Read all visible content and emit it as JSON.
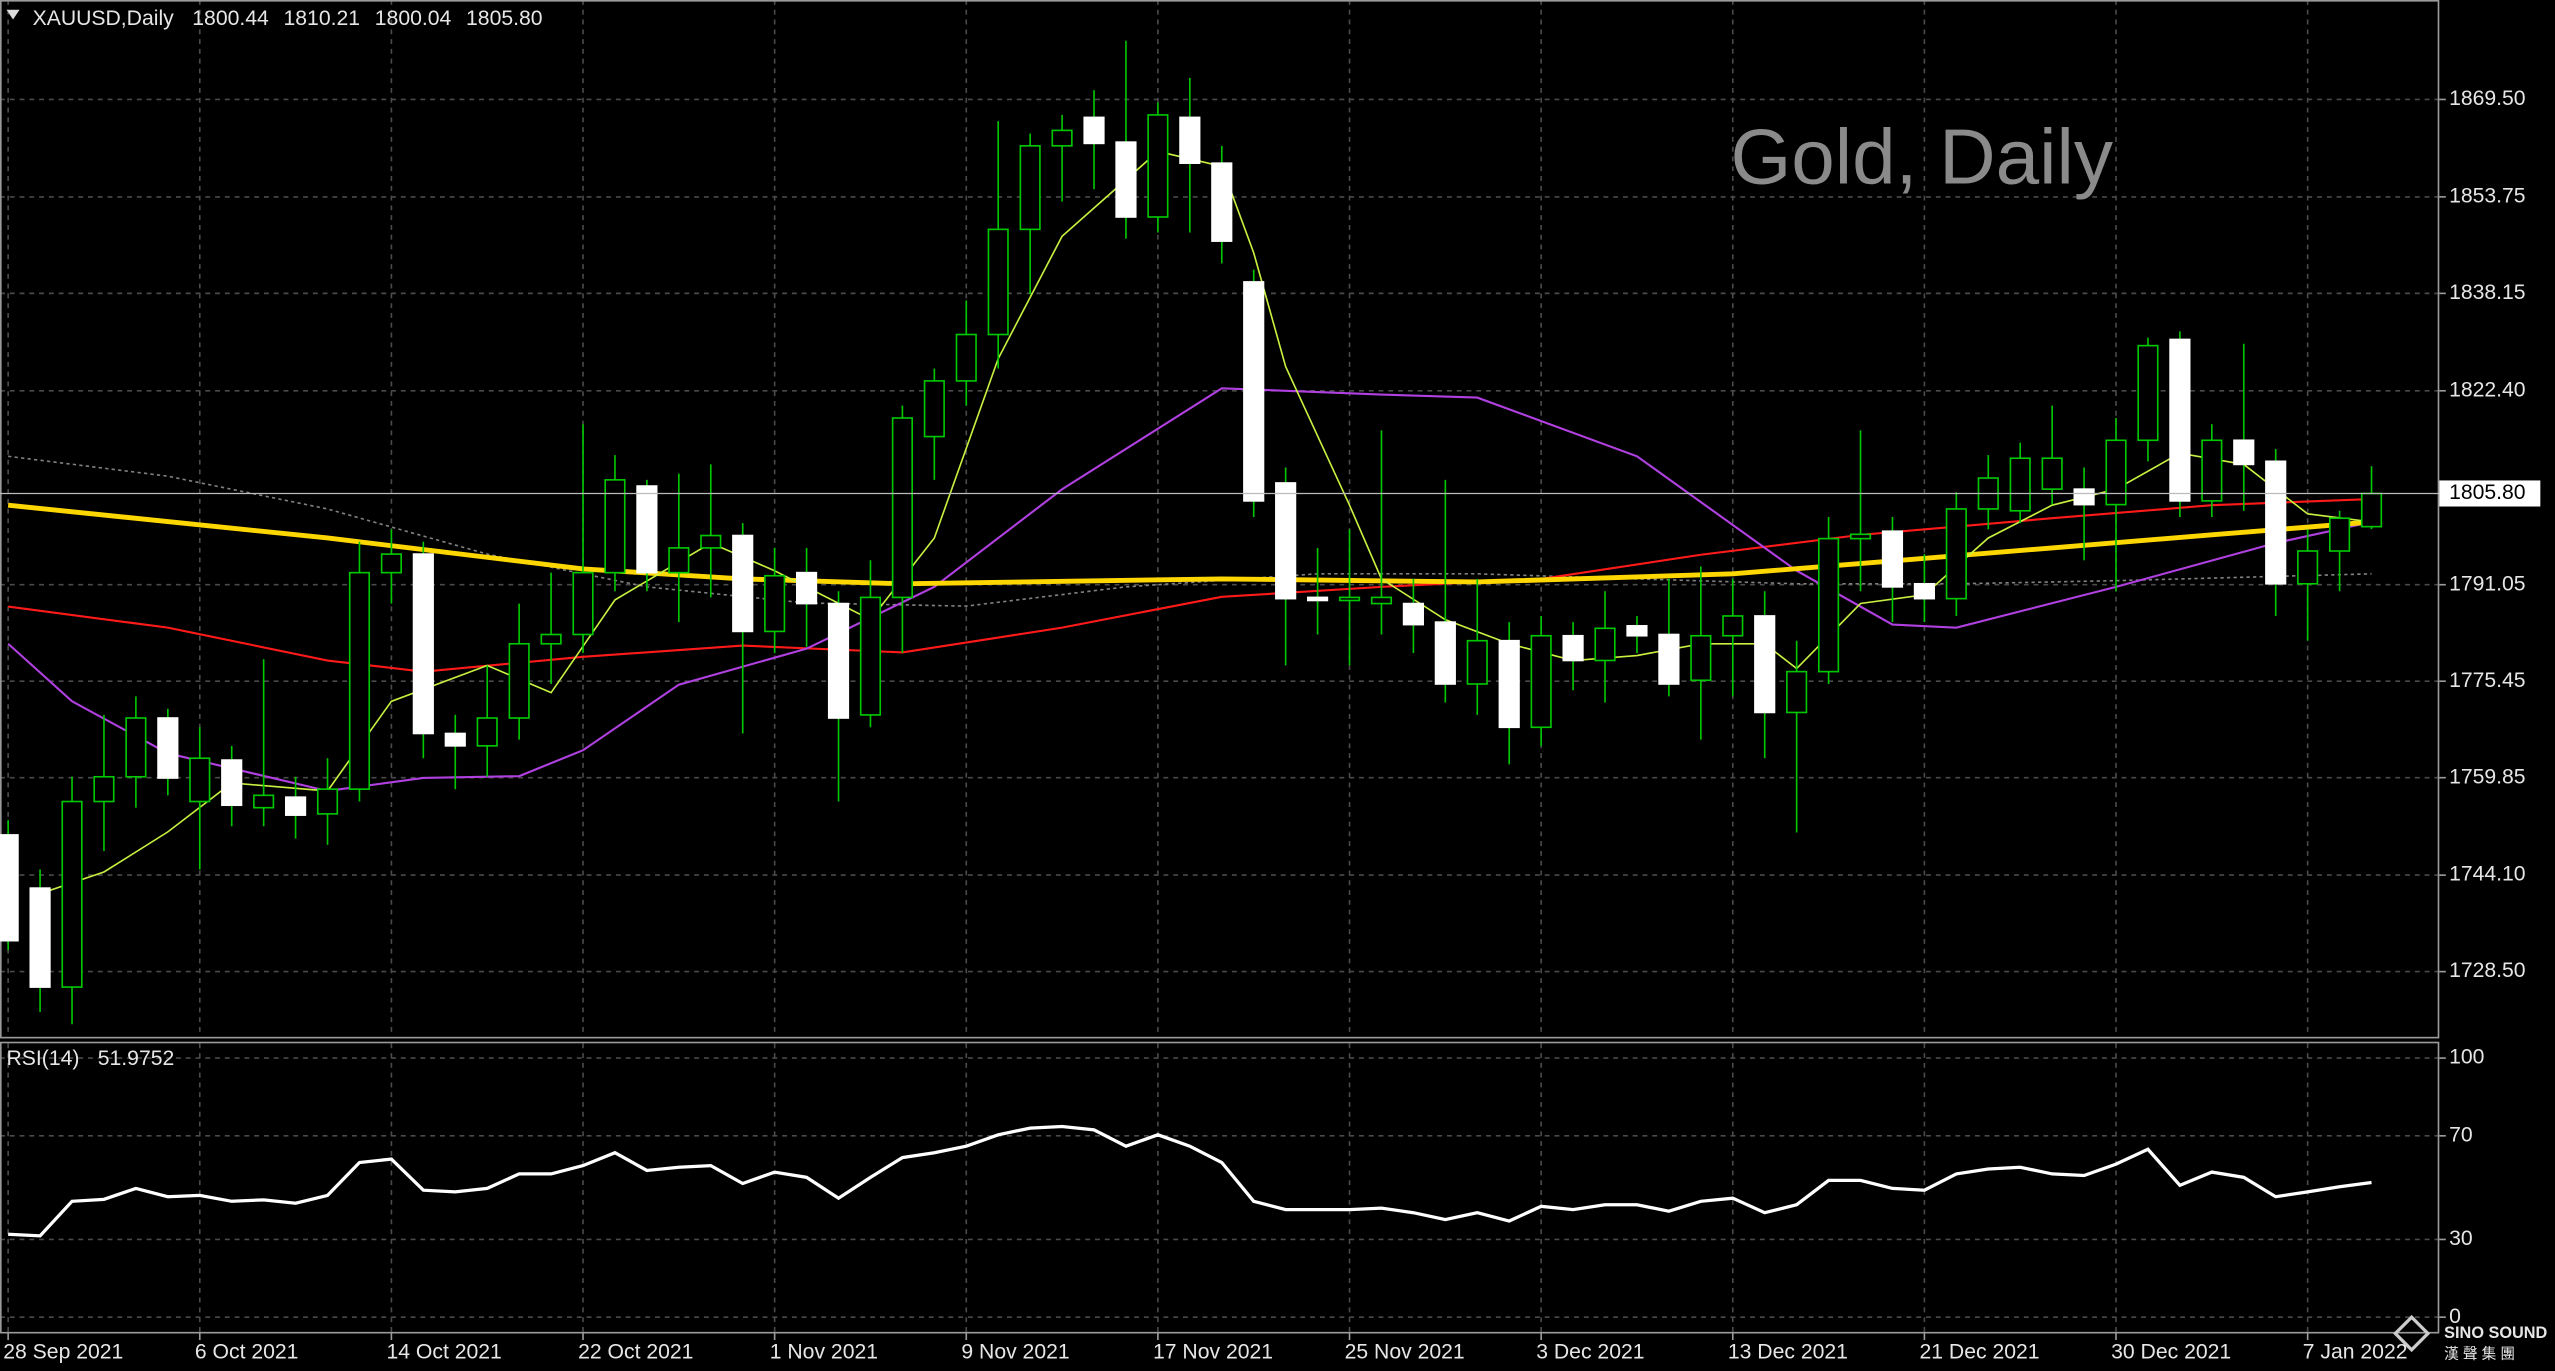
{
  "chart_data": {
    "type": "candlestick",
    "title": "Gold, Daily",
    "header": {
      "symbol": "XAUUSD,Daily",
      "ohlc": [
        "1800.44",
        "1810.21",
        "1800.04",
        "1805.80"
      ]
    },
    "price_label": "1805.80",
    "logo": {
      "name": "SINO SOUND",
      "chinese": "漢 聲 集 團"
    },
    "categories": [
      "28 Sep 2021",
      null,
      null,
      null,
      null,
      null,
      "6 Oct 2021",
      null,
      null,
      null,
      null,
      null,
      "14 Oct 2021",
      null,
      null,
      null,
      null,
      null,
      "22 Oct 2021",
      null,
      null,
      null,
      null,
      null,
      "1 Nov 2021",
      null,
      null,
      null,
      null,
      null,
      "9 Nov 2021",
      null,
      null,
      null,
      null,
      null,
      "17 Nov 2021",
      null,
      null,
      null,
      null,
      null,
      "25 Nov 2021",
      null,
      null,
      null,
      null,
      null,
      "3 Dec 2021",
      null,
      null,
      null,
      null,
      null,
      "13 Dec 2021",
      null,
      null,
      null,
      null,
      null,
      "21 Dec 2021",
      null,
      null,
      null,
      null,
      null,
      "30 Dec 2021",
      null,
      null,
      null,
      null,
      null,
      "7 Jan 2022",
      null,
      null
    ],
    "open": [
      1750.6,
      1742,
      1726,
      1756,
      1760,
      1769.5,
      1756,
      1762.7,
      1755,
      1756.7,
      1754,
      1758,
      1793,
      1796,
      1767,
      1765,
      1769.5,
      1781.5,
      1783,
      1793,
      1807,
      1793,
      1797,
      1799,
      1783.5,
      1793,
      1788,
      1770,
      1789,
      1815,
      1824,
      1831.5,
      1848.5,
      1862,
      1866.6,
      1862.6,
      1850.5,
      1866.6,
      1859.2,
      1840,
      1807.5,
      1789,
      1788.5,
      1788,
      1788,
      1785,
      1775,
      1782,
      1768,
      1782.8,
      1778.8,
      1784.4,
      1783,
      1775.6,
      1782.8,
      1786,
      1770.4,
      1777,
      1798.5,
      1799.7,
      1791.2,
      1788.8,
      1803.3,
      1803,
      1806.5,
      1806.5,
      1804,
      1814.4,
      1830.7,
      1804.6,
      1814.4,
      1811,
      1791.2,
      1796.5,
      1800.44
    ],
    "high": [
      1753,
      1745,
      1760,
      1770,
      1773,
      1771,
      1768,
      1765,
      1779,
      1760,
      1763,
      1798,
      1800,
      1798,
      1770,
      1778,
      1788,
      1793,
      1817,
      1812,
      1808,
      1809,
      1810.5,
      1801,
      1797,
      1797,
      1790,
      1795,
      1820,
      1826,
      1837,
      1866,
      1864,
      1867,
      1871,
      1879,
      1869,
      1873,
      1862,
      1842,
      1810,
      1797,
      1800,
      1816,
      1792,
      1808,
      1792,
      1785,
      1786,
      1785,
      1790,
      1786,
      1792,
      1794,
      1792,
      1790,
      1782,
      1802,
      1816,
      1802,
      1796,
      1806,
      1812,
      1814,
      1820,
      1810,
      1818,
      1831,
      1832,
      1817,
      1830,
      1813,
      1800,
      1803,
      1810.21
    ],
    "low": [
      1732,
      1722,
      1720,
      1748,
      1755,
      1757,
      1745,
      1752,
      1752,
      1750,
      1749,
      1756,
      1788,
      1763,
      1758,
      1760,
      1766,
      1775,
      1780,
      1790,
      1790,
      1785,
      1789,
      1767,
      1780,
      1781,
      1756,
      1768,
      1780,
      1808,
      1820,
      1826,
      1838,
      1853,
      1855,
      1847,
      1848,
      1848,
      1843,
      1802,
      1778,
      1783,
      1778,
      1783,
      1780,
      1772,
      1770,
      1762,
      1765,
      1774,
      1772,
      1780,
      1773,
      1766,
      1773,
      1763,
      1751,
      1775,
      1790,
      1785,
      1785,
      1786,
      1800,
      1801,
      1804,
      1795,
      1790,
      1811,
      1802,
      1802,
      1803,
      1786,
      1782,
      1790,
      1800.04
    ],
    "close": [
      1733.5,
      1726,
      1756,
      1760,
      1769.5,
      1759.8,
      1763,
      1755.4,
      1757,
      1753.8,
      1758,
      1793,
      1796,
      1767,
      1765,
      1769.5,
      1781.5,
      1783,
      1793,
      1808,
      1793,
      1797,
      1799,
      1783.5,
      1792.5,
      1788,
      1769.5,
      1789,
      1818,
      1824,
      1831.5,
      1848.5,
      1862,
      1864.5,
      1862.4,
      1850.5,
      1867,
      1859.2,
      1846.6,
      1804.6,
      1788.8,
      1788.5,
      1789,
      1789,
      1784.6,
      1775,
      1782,
      1768,
      1782.8,
      1778.8,
      1784,
      1782.8,
      1775,
      1782.8,
      1786,
      1770.4,
      1777,
      1798.5,
      1799.2,
      1790.7,
      1788.8,
      1803.3,
      1808.3,
      1811.5,
      1811.5,
      1804,
      1814.4,
      1829.7,
      1804.6,
      1814.4,
      1810.5,
      1791.2,
      1796.5,
      1801.8,
      1805.8
    ],
    "up_color": "#00c800",
    "down_color": "#ffffff",
    "ylim": [
      1717.96,
      1885.58
    ],
    "yticks": [
      {
        "value": 1869.5,
        "label": "1869.50"
      },
      {
        "value": 1853.75,
        "label": "1853.75"
      },
      {
        "value": 1838.15,
        "label": "1838.15"
      },
      {
        "value": 1822.4,
        "label": "1822.40"
      },
      {
        "value": 1791.05,
        "label": "1791.05"
      },
      {
        "value": 1775.45,
        "label": "1775.45"
      },
      {
        "value": 1759.85,
        "label": "1759.85"
      },
      {
        "value": 1744.1,
        "label": "1744.10"
      },
      {
        "value": 1728.5,
        "label": "1728.50"
      }
    ],
    "grid": true,
    "series": [
      {
        "color": "#808080",
        "width": 1,
        "dash": "2,2",
        "x": [
          0,
          5,
          10,
          15,
          20,
          25,
          30,
          35,
          41,
          46,
          51,
          56,
          61,
          66,
          74
        ],
        "values": [
          1811.8,
          1808.6,
          1803.3,
          1796,
          1790.7,
          1788.1,
          1787.6,
          1790.7,
          1792.8,
          1792.8,
          1792,
          1791.2,
          1791.2,
          1791.7,
          1792.8
        ]
      },
      {
        "color": "#ff1a1a",
        "width": 1.3,
        "x": [
          0,
          5,
          10,
          13,
          18,
          23,
          28,
          33,
          38,
          43,
          48,
          53,
          58,
          64,
          69,
          74
        ],
        "values": [
          1787.5,
          1784.1,
          1778.8,
          1777,
          1779.4,
          1781.2,
          1780.1,
          1784.1,
          1789.1,
          1790.7,
          1792,
          1795.9,
          1799.1,
          1801.8,
          1803.9,
          1804.9
        ]
      },
      {
        "color": "#b040e0",
        "width": 1.3,
        "x": [
          0,
          2,
          5,
          10,
          13,
          16,
          18,
          21,
          25,
          29,
          33,
          38,
          43,
          46,
          51,
          56,
          59,
          61,
          66,
          71,
          74
        ],
        "values": [
          1781.5,
          1772.2,
          1763.8,
          1757.7,
          1759.8,
          1760.1,
          1764.3,
          1774.9,
          1780.7,
          1790.7,
          1806.5,
          1822.8,
          1821.8,
          1821.3,
          1811.8,
          1793.3,
          1784.6,
          1784.1,
          1790.7,
          1797.8,
          1801.2
        ]
      },
      {
        "color": "#ffd700",
        "width": 3,
        "x": [
          0,
          10,
          18,
          23,
          28,
          38,
          46,
          54,
          59,
          64,
          69,
          74
        ],
        "values": [
          1803.9,
          1798.6,
          1793.6,
          1792,
          1791.2,
          1792,
          1791.5,
          1792.8,
          1794.9,
          1797,
          1799.1,
          1801.2
        ]
      },
      {
        "color": "#c8f040",
        "width": 1,
        "x": [
          1,
          3,
          5,
          7,
          10,
          12,
          15,
          17,
          19,
          22,
          24,
          27,
          29,
          31,
          33,
          36,
          38,
          39,
          40,
          42,
          43,
          45,
          47,
          49,
          51,
          53,
          55,
          56,
          58,
          60,
          62,
          64,
          66,
          68,
          70,
          72,
          74
        ],
        "values": [
          1741.1,
          1744.6,
          1751.1,
          1759,
          1757.7,
          1772.2,
          1778,
          1773.6,
          1788.6,
          1797.8,
          1793.3,
          1785.4,
          1798.6,
          1827.6,
          1847.4,
          1861.1,
          1858.7,
          1844.7,
          1826.3,
          1803.9,
          1792,
          1785.4,
          1781.5,
          1778.8,
          1779.6,
          1781.5,
          1781.5,
          1777.5,
          1788,
          1789.4,
          1798.6,
          1803.9,
          1806.5,
          1812.3,
          1810.5,
          1802.5,
          1801.2
        ]
      }
    ],
    "rsi": {
      "name": "RSI(14)",
      "color": "#ffffff",
      "values": [
        32,
        31.4,
        44.7,
        45.5,
        49.7,
        46.5,
        47,
        44.7,
        45.3,
        44,
        47,
        59.7,
        61,
        49,
        48.4,
        49.7,
        55.3,
        55.3,
        58.5,
        63.5,
        56.6,
        57.9,
        58.5,
        51.6,
        56,
        54,
        45.9,
        54,
        61.6,
        63.5,
        66,
        70.4,
        73,
        73.6,
        72.3,
        66,
        70.4,
        66,
        59.7,
        44.7,
        41.5,
        41.5,
        41.5,
        42.1,
        40.3,
        37.7,
        40.3,
        37.1,
        42.8,
        41.5,
        43.4,
        43.4,
        40.9,
        44.7,
        45.9,
        40.3,
        43.4,
        52.8,
        52.8,
        49.7,
        49,
        55.3,
        57.2,
        57.9,
        55.3,
        54.7,
        59.1,
        64.8,
        50.9,
        56,
        54,
        46.5,
        48.4,
        50.3,
        51.9752
      ],
      "ylim": [
        -6.3,
        105.7
      ],
      "yticks": [
        100,
        70,
        30,
        0
      ]
    }
  }
}
